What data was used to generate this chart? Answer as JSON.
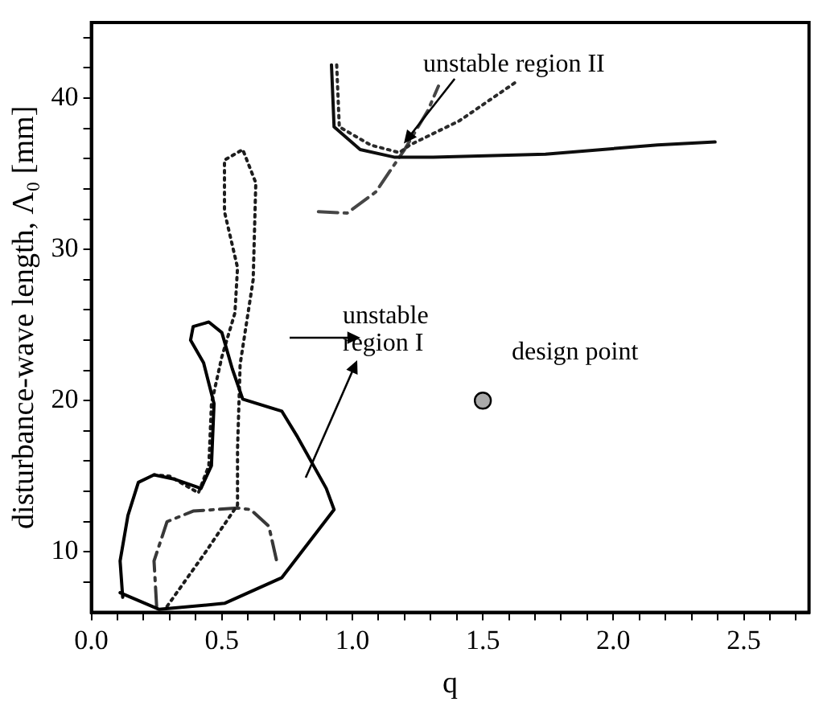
{
  "chart_data": {
    "type": "line",
    "xlabel": "q",
    "ylabel": "disturbance-wave length, Λ₀ [mm]",
    "xlim": [
      0,
      2.75
    ],
    "ylim": [
      6,
      45
    ],
    "xticks": [
      {
        "value": 0,
        "label": "0.0"
      },
      {
        "value": 0.1,
        "label": null
      },
      {
        "value": 0.2,
        "label": null
      },
      {
        "value": 0.3,
        "label": null
      },
      {
        "value": 0.4,
        "label": null
      },
      {
        "value": 0.5,
        "label": "0.5"
      },
      {
        "value": 0.6,
        "label": null
      },
      {
        "value": 0.7,
        "label": null
      },
      {
        "value": 0.8,
        "label": null
      },
      {
        "value": 0.9,
        "label": null
      },
      {
        "value": 1,
        "label": "1.0"
      },
      {
        "value": 1.1,
        "label": null
      },
      {
        "value": 1.2,
        "label": null
      },
      {
        "value": 1.3,
        "label": null
      },
      {
        "value": 1.4,
        "label": null
      },
      {
        "value": 1.5,
        "label": "1.5"
      },
      {
        "value": 1.6,
        "label": null
      },
      {
        "value": 1.7,
        "label": null
      },
      {
        "value": 1.8,
        "label": null
      },
      {
        "value": 1.9,
        "label": null
      },
      {
        "value": 2,
        "label": "2.0"
      },
      {
        "value": 2.1,
        "label": null
      },
      {
        "value": 2.2,
        "label": null
      },
      {
        "value": 2.3,
        "label": null
      },
      {
        "value": 2.4,
        "label": null
      },
      {
        "value": 2.5,
        "label": "2.5"
      },
      {
        "value": 2.6,
        "label": null
      },
      {
        "value": 2.7,
        "label": null
      }
    ],
    "yticks": [
      {
        "value": 8,
        "label": null
      },
      10,
      {
        "value": 12,
        "label": null
      },
      {
        "value": 14,
        "label": null
      },
      {
        "value": 16,
        "label": null
      },
      {
        "value": 18,
        "label": null
      },
      20,
      {
        "value": 22,
        "label": null
      },
      {
        "value": 24,
        "label": null
      },
      {
        "value": 26,
        "label": null
      },
      {
        "value": 28,
        "label": null
      },
      30,
      {
        "value": 32,
        "label": null
      },
      {
        "value": 34,
        "label": null
      },
      {
        "value": 36,
        "label": null
      },
      {
        "value": 38,
        "label": null
      },
      40,
      {
        "value": 42,
        "label": null
      },
      {
        "value": 44,
        "label": null
      }
    ],
    "grid": false,
    "legend": false,
    "series": [
      {
        "color": "#000000",
        "line_style": "solid",
        "x": [
          0.11,
          0.26,
          0.51,
          0.73,
          0.93,
          0.9,
          0.79,
          0.73,
          0.58,
          0.54,
          0.5,
          0.45,
          0.39,
          0.38,
          0.43,
          0.47,
          0.46,
          0.42,
          0.32,
          0.24,
          0.18,
          0.14,
          0.11,
          0.12
        ],
        "values": [
          7.3,
          6.2,
          6.6,
          8.3,
          12.8,
          14.2,
          17.6,
          19.3,
          20.1,
          22.1,
          24.5,
          25.2,
          24.9,
          24,
          22.5,
          19.8,
          15.7,
          14.2,
          14.8,
          15.1,
          14.6,
          12.4,
          9.4,
          7
        ]
      },
      {
        "color": "#1c1c1c",
        "line_style": "dotted",
        "x": [
          0.29,
          0.43,
          0.56,
          0.56,
          0.57,
          0.62,
          0.63,
          0.58,
          0.51,
          0.51,
          0.56,
          0.55,
          0.5,
          0.46,
          0.45,
          0.41,
          0.3,
          0.24
        ],
        "values": [
          6.4,
          9.8,
          13.1,
          16.8,
          22.4,
          28,
          34.4,
          36.6,
          35.9,
          32.5,
          28.8,
          25.8,
          22.9,
          19.8,
          15.7,
          13.9,
          15,
          15.1
        ]
      },
      {
        "color": "#383838",
        "line_style": "dashed",
        "x": [
          0.25,
          0.24,
          0.29,
          0.39,
          0.56,
          0.61,
          0.68,
          0.71
        ],
        "values": [
          6.4,
          9.4,
          12,
          12.7,
          12.9,
          12.8,
          11.7,
          9.4
        ]
      },
      {
        "color": "#0e0e0e",
        "line_style": "solid",
        "x": [
          0.92,
          0.93,
          1.03,
          1.16,
          1.31,
          1.74,
          2.17,
          2.39
        ],
        "values": [
          42.2,
          38.1,
          36.6,
          36.1,
          36.1,
          36.3,
          36.9,
          37.1
        ]
      },
      {
        "color": "#2a2a2a",
        "line_style": "dotted",
        "x": [
          0.94,
          0.95,
          1.07,
          1.18,
          1.22,
          1.41,
          1.63
        ],
        "values": [
          42.2,
          38.1,
          36.9,
          36.4,
          36.9,
          38.5,
          41.1
        ]
      },
      {
        "color": "#464646",
        "line_style": "dashed",
        "x": [
          0.87,
          0.98,
          1.09,
          1.2,
          1.29,
          1.33
        ],
        "values": [
          32.5,
          32.4,
          33.8,
          36.6,
          39.2,
          40.8
        ]
      },
      {
        "type": "scatter",
        "color": "#aaaaaa",
        "marker": "circle",
        "x": [
          1.5
        ],
        "values": [
          20
        ]
      }
    ],
    "annotations": [
      {
        "text": "unstable region II",
        "x": 1.2,
        "y": 37
      },
      "unstable region I",
      "design point"
    ]
  }
}
